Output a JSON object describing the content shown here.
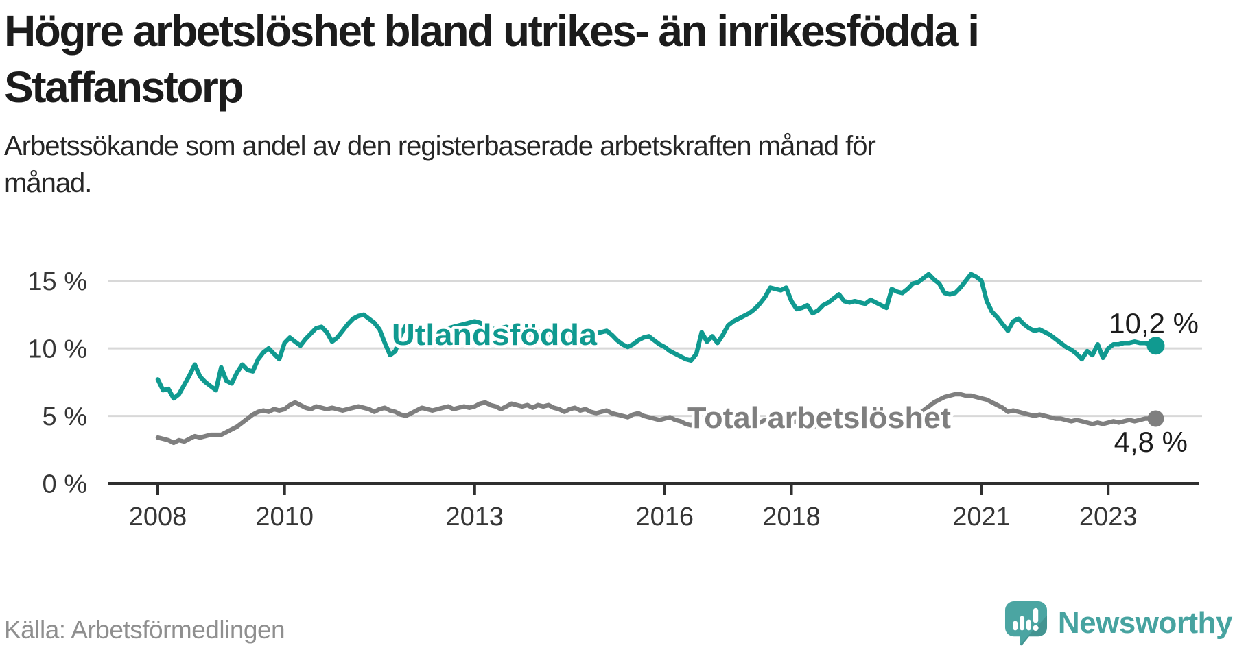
{
  "header": {
    "title_lines": [
      "Högre arbetslöshet bland utrikes- än inrikesfödda i",
      "Staffanstorp"
    ],
    "subtitle_lines": [
      "Arbetssökande som andel av den registerbaserade arbetskraften månad för",
      "månad."
    ]
  },
  "chart_data": {
    "type": "line",
    "title": "Högre arbetslöshet bland utrikes- än inrikesfödda i Staffanstorp",
    "subtitle": "Arbetssökande som andel av den registerbaserade arbetskraften månad för månad.",
    "x_unit": "month",
    "x_start": "2008-01",
    "x_end": "2023-10",
    "ylim": [
      0,
      16.5
    ],
    "grid": "horizontal",
    "legend_position": "inline-labels",
    "y_ticks": [
      {
        "value": 0,
        "label": "0 %"
      },
      {
        "value": 5,
        "label": "5 %"
      },
      {
        "value": 10,
        "label": "10 %"
      },
      {
        "value": 15,
        "label": "15 %"
      }
    ],
    "x_ticks": [
      {
        "year": 2008,
        "label": "2008"
      },
      {
        "year": 2010,
        "label": "2010"
      },
      {
        "year": 2013,
        "label": "2013"
      },
      {
        "year": 2016,
        "label": "2016"
      },
      {
        "year": 2018,
        "label": "2018"
      },
      {
        "year": 2021,
        "label": "2021"
      },
      {
        "year": 2023,
        "label": "2023"
      }
    ],
    "series": [
      {
        "name": "Utlandsfödda",
        "color": "#109a90",
        "end_label": "10,2 %",
        "end_value": 10.2,
        "values": [
          7.7,
          6.9,
          7.0,
          6.3,
          6.6,
          7.3,
          8.0,
          8.8,
          7.9,
          7.5,
          7.2,
          6.9,
          8.6,
          7.6,
          7.4,
          8.2,
          8.8,
          8.4,
          8.3,
          9.2,
          9.7,
          10.0,
          9.6,
          9.2,
          10.4,
          10.8,
          10.5,
          10.2,
          10.7,
          11.1,
          11.5,
          11.6,
          11.2,
          10.5,
          10.8,
          11.3,
          11.8,
          12.2,
          12.4,
          12.5,
          12.2,
          11.9,
          11.4,
          10.4,
          9.5,
          9.8,
          11.0,
          11.7,
          11.6,
          11.4,
          11.2,
          11.0,
          11.1,
          11.3,
          11.4,
          11.5,
          11.6,
          11.7,
          11.8,
          11.9,
          12.0,
          11.9,
          11.7,
          11.5,
          11.4,
          11.5,
          11.6,
          11.4,
          11.2,
          11.1,
          11.0,
          11.1,
          11.2,
          11.3,
          11.1,
          10.9,
          10.8,
          10.7,
          10.8,
          10.9,
          10.7,
          10.8,
          11.0,
          11.1,
          11.2,
          11.3,
          11.0,
          10.6,
          10.3,
          10.1,
          10.3,
          10.6,
          10.8,
          10.9,
          10.6,
          10.3,
          10.1,
          9.8,
          9.6,
          9.4,
          9.2,
          9.1,
          9.6,
          11.2,
          10.5,
          10.9,
          10.4,
          11.0,
          11.7,
          12.0,
          12.2,
          12.4,
          12.6,
          12.9,
          13.3,
          13.8,
          14.5,
          14.4,
          14.3,
          14.5,
          13.5,
          12.9,
          13.0,
          13.2,
          12.6,
          12.8,
          13.2,
          13.4,
          13.7,
          14.0,
          13.5,
          13.4,
          13.5,
          13.4,
          13.3,
          13.6,
          13.4,
          13.2,
          13.0,
          14.4,
          14.2,
          14.1,
          14.4,
          14.8,
          14.9,
          15.2,
          15.5,
          15.1,
          14.8,
          14.1,
          14.0,
          14.1,
          14.5,
          15.0,
          15.5,
          15.3,
          15.0,
          13.5,
          12.7,
          12.3,
          11.8,
          11.3,
          12.0,
          12.2,
          11.8,
          11.5,
          11.3,
          11.4,
          11.2,
          11.0,
          10.7,
          10.4,
          10.1,
          9.9,
          9.6,
          9.2,
          9.8,
          9.5,
          10.3,
          9.3,
          10.0,
          10.3,
          10.3,
          10.4,
          10.4,
          10.5,
          10.4,
          10.4,
          10.3,
          10.2
        ]
      },
      {
        "name": "Total arbetslöshet",
        "color": "#7f7f7f",
        "end_label": "4,8 %",
        "end_value": 4.8,
        "values": [
          3.4,
          3.3,
          3.2,
          3.0,
          3.2,
          3.1,
          3.3,
          3.5,
          3.4,
          3.5,
          3.6,
          3.6,
          3.6,
          3.8,
          4.0,
          4.2,
          4.5,
          4.8,
          5.1,
          5.3,
          5.4,
          5.3,
          5.5,
          5.4,
          5.5,
          5.8,
          6.0,
          5.8,
          5.6,
          5.5,
          5.7,
          5.6,
          5.5,
          5.6,
          5.5,
          5.4,
          5.5,
          5.6,
          5.7,
          5.6,
          5.5,
          5.3,
          5.5,
          5.6,
          5.4,
          5.3,
          5.1,
          5.0,
          5.2,
          5.4,
          5.6,
          5.5,
          5.4,
          5.5,
          5.6,
          5.7,
          5.5,
          5.6,
          5.7,
          5.6,
          5.7,
          5.9,
          6.0,
          5.8,
          5.7,
          5.5,
          5.7,
          5.9,
          5.8,
          5.7,
          5.8,
          5.6,
          5.8,
          5.7,
          5.8,
          5.6,
          5.5,
          5.3,
          5.5,
          5.6,
          5.4,
          5.5,
          5.3,
          5.2,
          5.3,
          5.4,
          5.2,
          5.1,
          5.0,
          4.9,
          5.1,
          5.2,
          5.0,
          4.9,
          4.8,
          4.7,
          4.8,
          4.9,
          4.7,
          4.6,
          4.4,
          4.3,
          4.5,
          4.7,
          4.6,
          4.4,
          4.3,
          4.4,
          4.5,
          4.6,
          4.4,
          4.3,
          4.2,
          4.3,
          4.5,
          4.7,
          4.5,
          4.4,
          4.3,
          4.4,
          4.5,
          4.6,
          4.4,
          4.3,
          4.2,
          4.3,
          4.5,
          4.6,
          4.5,
          4.3,
          4.2,
          4.3,
          4.4,
          4.5,
          4.4,
          4.3,
          4.2,
          4.3,
          4.5,
          4.7,
          4.6,
          4.7,
          4.8,
          4.9,
          5.2,
          5.4,
          5.7,
          6.0,
          6.2,
          6.4,
          6.5,
          6.6,
          6.6,
          6.5,
          6.5,
          6.4,
          6.3,
          6.2,
          6.0,
          5.8,
          5.6,
          5.3,
          5.4,
          5.3,
          5.2,
          5.1,
          5.0,
          5.1,
          5.0,
          4.9,
          4.8,
          4.8,
          4.7,
          4.6,
          4.7,
          4.6,
          4.5,
          4.4,
          4.5,
          4.4,
          4.5,
          4.6,
          4.5,
          4.6,
          4.7,
          4.6,
          4.7,
          4.8,
          4.8,
          4.8
        ]
      }
    ]
  },
  "footer": {
    "source": "Källa: Arbetsförmedlingen",
    "brand": "Newsworthy"
  },
  "colors": {
    "accent_teal": "#109a90",
    "series_gray": "#7f7f7f",
    "brand_teal": "#4ba5a2",
    "grid": "#d8d8d8",
    "axis": "#2f2f2f",
    "text": "#1c1c1c",
    "muted": "#8f8f8f"
  }
}
